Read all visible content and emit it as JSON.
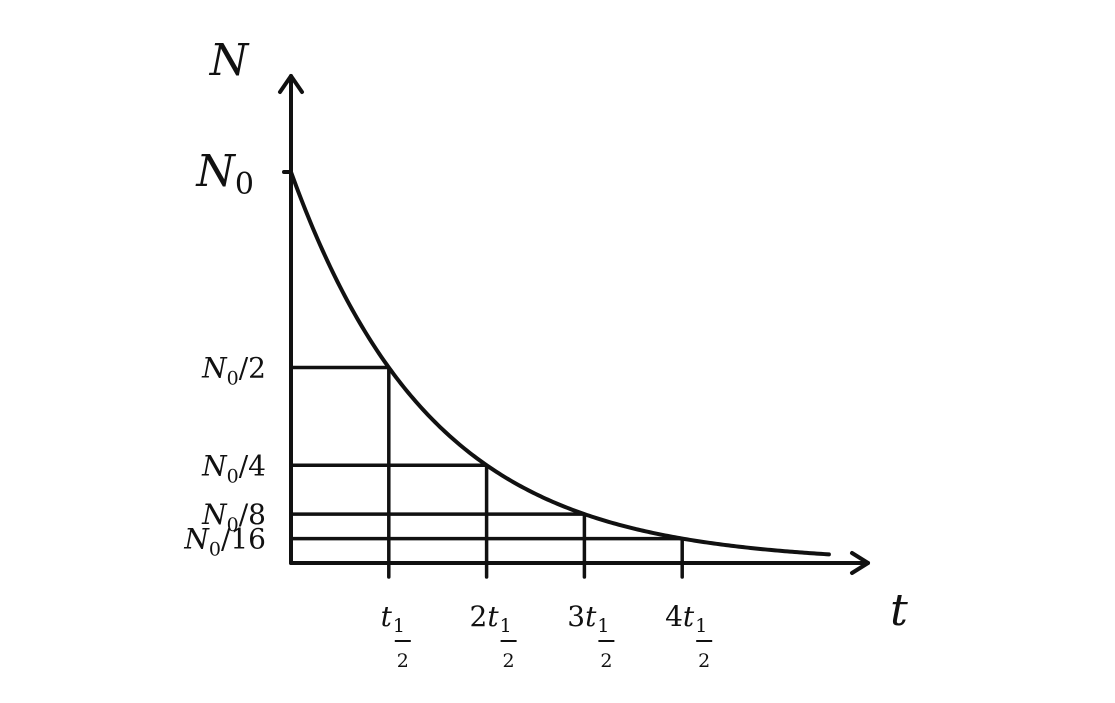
{
  "chart_data": {
    "type": "line",
    "y_axis_label": "N",
    "x_axis_label": "t",
    "y_max_label": {
      "symbol": "N",
      "subscript": "0"
    },
    "ylim": [
      0,
      1.05
    ],
    "xlim": [
      0,
      5.5
    ],
    "series": [
      {
        "x": [
          0,
          0.25,
          0.5,
          0.75,
          1,
          1.5,
          2,
          2.5,
          3,
          3.5,
          4,
          4.5,
          5,
          5.5
        ],
        "values": [
          1,
          0.8409,
          0.7071,
          0.5946,
          0.5,
          0.3536,
          0.25,
          0.1768,
          0.125,
          0.0884,
          0.0625,
          0.0442,
          0.0313,
          0.0221
        ]
      }
    ],
    "y_ticks": [
      {
        "value": 1,
        "symbol": "N",
        "subscript": "0",
        "suffix": ""
      },
      {
        "value": 0.5,
        "symbol": "N",
        "subscript": "0",
        "suffix": "/2"
      },
      {
        "value": 0.25,
        "symbol": "N",
        "subscript": "0",
        "suffix": "/4"
      },
      {
        "value": 0.125,
        "symbol": "N",
        "subscript": "0",
        "suffix": "/8"
      },
      {
        "value": 0.0625,
        "symbol": "N",
        "subscript": "0",
        "suffix": "/16"
      }
    ],
    "x_ticks": [
      {
        "value": 1,
        "coef": "",
        "symbol": "t",
        "numerator": "1",
        "denominator": "2"
      },
      {
        "value": 2,
        "coef": "2",
        "symbol": "t",
        "numerator": "1",
        "denominator": "2"
      },
      {
        "value": 3,
        "coef": "3",
        "symbol": "t",
        "numerator": "1",
        "denominator": "2"
      },
      {
        "value": 4,
        "coef": "4",
        "symbol": "t",
        "numerator": "1",
        "denominator": "2"
      }
    ],
    "guide_lines": true,
    "grid": false,
    "legend": "none",
    "colors": {
      "ink": "#111111",
      "background": "#ffffff"
    }
  }
}
